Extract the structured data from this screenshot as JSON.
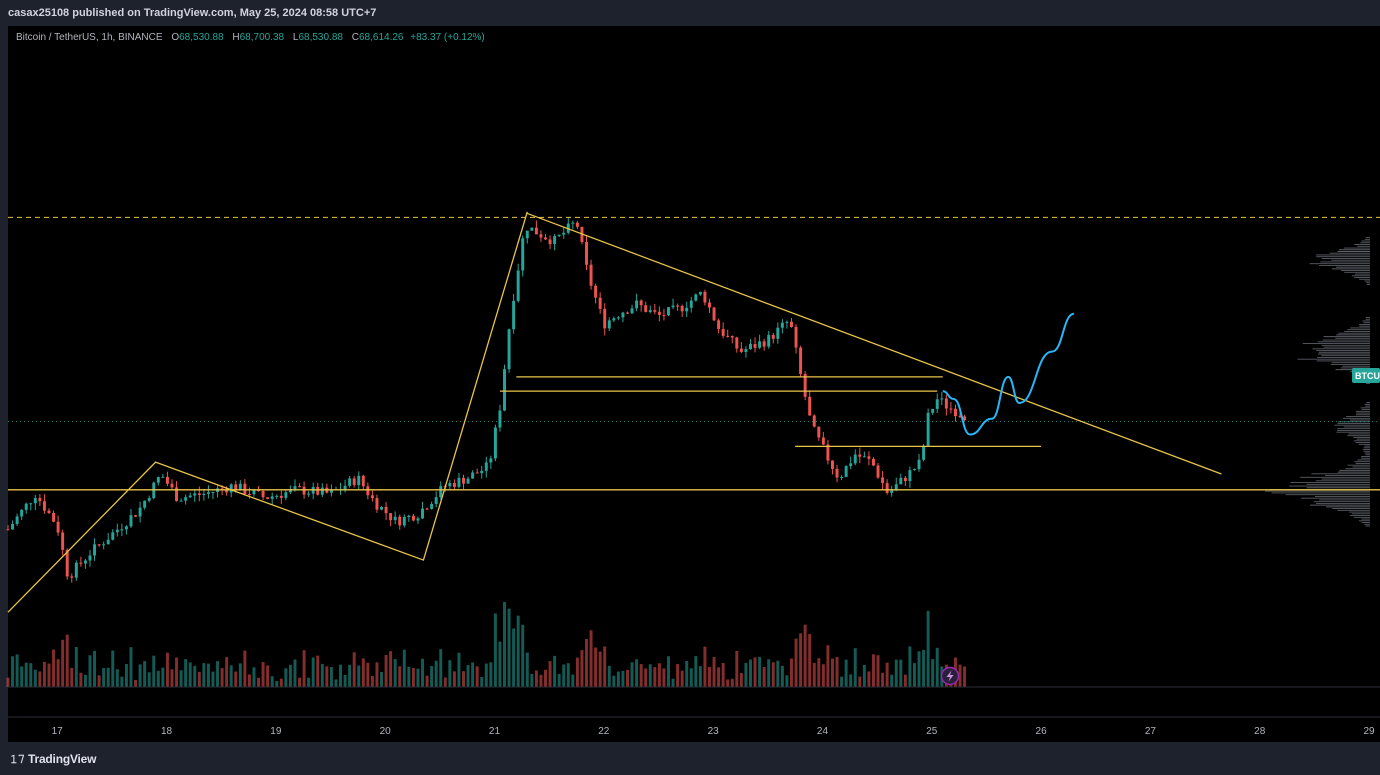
{
  "header": {
    "publisher_text": "casax25108 published on TradingView.com, May 25, 2024 08:58 UTC+7"
  },
  "legend": {
    "symbol": "Bitcoin / TetherUS, 1h, BINANCE",
    "open_label": "O",
    "open": "68,530.88",
    "high_label": "H",
    "high": "68,700.38",
    "low_label": "L",
    "low": "68,530.88",
    "close_label": "C",
    "close": "68,614.26",
    "change": "+83.37 (+0.12%)"
  },
  "price_tag": "BTCU",
  "footer": {
    "brand": "TradingView",
    "logo_icon": "tradingview-logo-icon"
  },
  "colors": {
    "up": "#26a69a",
    "down": "#ef5350",
    "annotation": "#e8c547",
    "projection": "#29b6f6",
    "background": "#000000"
  },
  "chart_data": {
    "type": "candlestick",
    "title": "Bitcoin / TetherUS, 1h, BINANCE",
    "x_ticks": [
      "17",
      "18",
      "19",
      "20",
      "21",
      "22",
      "23",
      "24",
      "25",
      "26",
      "27",
      "28",
      "29"
    ],
    "x_tick_days": [
      17,
      18,
      19,
      20,
      21,
      22,
      23,
      24,
      25,
      26,
      27,
      28,
      29
    ],
    "x_range_days": [
      16.55,
      29.1
    ],
    "y_range_price": [
      66000,
      71800
    ],
    "price_path": [
      [
        16.55,
        67250
      ],
      [
        16.8,
        67700
      ],
      [
        17.0,
        67300
      ],
      [
        17.1,
        66650
      ],
      [
        17.3,
        66950
      ],
      [
        17.55,
        67250
      ],
      [
        17.75,
        67500
      ],
      [
        17.95,
        67950
      ],
      [
        18.1,
        67650
      ],
      [
        18.35,
        67700
      ],
      [
        18.6,
        67800
      ],
      [
        18.9,
        67650
      ],
      [
        19.2,
        67750
      ],
      [
        19.5,
        67700
      ],
      [
        19.75,
        67900
      ],
      [
        19.9,
        67600
      ],
      [
        20.1,
        67350
      ],
      [
        20.3,
        67450
      ],
      [
        20.55,
        67800
      ],
      [
        20.75,
        67900
      ],
      [
        20.95,
        68050
      ],
      [
        21.05,
        68800
      ],
      [
        21.15,
        70000
      ],
      [
        21.28,
        71100
      ],
      [
        21.4,
        71000
      ],
      [
        21.55,
        70900
      ],
      [
        21.75,
        71150
      ],
      [
        21.85,
        70500
      ],
      [
        22.0,
        69850
      ],
      [
        22.15,
        70000
      ],
      [
        22.3,
        70100
      ],
      [
        22.5,
        69950
      ],
      [
        22.7,
        70050
      ],
      [
        22.9,
        70250
      ],
      [
        23.05,
        69800
      ],
      [
        23.25,
        69500
      ],
      [
        23.5,
        69650
      ],
      [
        23.7,
        69900
      ],
      [
        23.8,
        69200
      ],
      [
        23.9,
        68550
      ],
      [
        24.05,
        68150
      ],
      [
        24.15,
        67900
      ],
      [
        24.3,
        68200
      ],
      [
        24.45,
        68100
      ],
      [
        24.6,
        67700
      ],
      [
        24.75,
        67900
      ],
      [
        24.9,
        68100
      ],
      [
        24.97,
        68700
      ],
      [
        25.05,
        68900
      ],
      [
        25.15,
        68800
      ],
      [
        25.32,
        68680
      ]
    ],
    "volume_profile_side": "right",
    "lines": [
      {
        "name": "upper-dashed-level",
        "style": "dashed",
        "color": "#e8c547",
        "price": 71200
      },
      {
        "name": "support-line",
        "style": "solid",
        "color": "#e8c547",
        "price": 67750
      },
      {
        "name": "current-price-line",
        "style": "dotted",
        "color": "#26a69a",
        "price": 68614.26
      },
      {
        "name": "descending-trendline",
        "style": "solid",
        "color": "#e8c547",
        "from": [
          21.3,
          71250
        ],
        "to": [
          27.65,
          67950
        ]
      },
      {
        "name": "range-line-1",
        "style": "solid",
        "color": "#e8c547",
        "from": [
          21.2,
          69180
        ],
        "to": [
          25.1,
          69180
        ]
      },
      {
        "name": "range-line-2",
        "style": "solid",
        "color": "#e8c547",
        "from": [
          21.05,
          69000
        ],
        "to": [
          25.05,
          69000
        ]
      },
      {
        "name": "retest-line",
        "style": "solid",
        "color": "#e8c547",
        "from": [
          23.75,
          68300
        ],
        "to": [
          26.0,
          68300
        ]
      }
    ],
    "zigzag": [
      [
        16.55,
        66200
      ],
      [
        17.9,
        68100
      ],
      [
        20.35,
        66860
      ],
      [
        21.3,
        71270
      ]
    ],
    "projection_path": [
      [
        25.1,
        69000
      ],
      [
        25.2,
        68900
      ],
      [
        25.35,
        68450
      ],
      [
        25.55,
        68650
      ],
      [
        25.7,
        69180
      ],
      [
        25.8,
        68850
      ],
      [
        26.1,
        69500
      ],
      [
        26.3,
        69980
      ]
    ]
  }
}
